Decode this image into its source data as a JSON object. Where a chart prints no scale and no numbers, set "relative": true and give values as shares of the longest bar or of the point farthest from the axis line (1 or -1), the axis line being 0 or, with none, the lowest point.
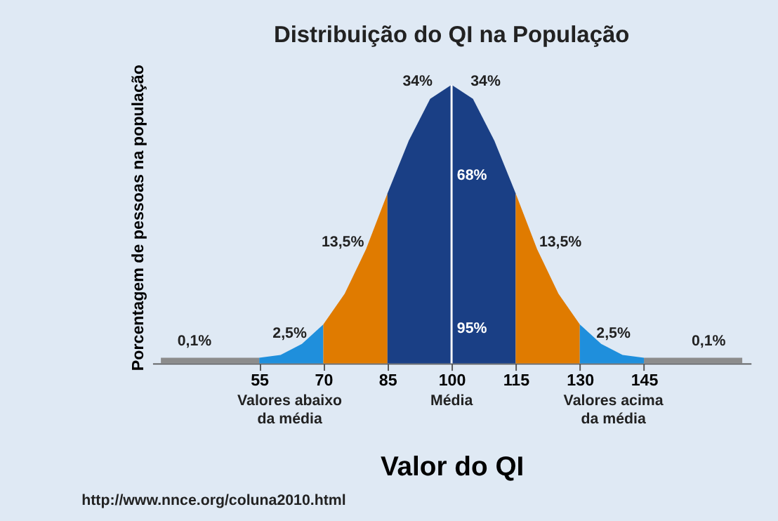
{
  "chart_data": {
    "type": "area",
    "title": "Distribuição do QI na População",
    "xlabel": "Valor do QI",
    "ylabel": "Porcentagem de pessoas na população",
    "relative": true,
    "xlim": [
      30,
      170
    ],
    "xticks": [
      55,
      70,
      85,
      100,
      115,
      130,
      145
    ],
    "grid": false,
    "series": [
      {
        "color": "#8c8c8c",
        "x": [
          32,
          55
        ],
        "values": [
          0.02,
          0.02
        ]
      },
      {
        "color": "#8c8c8c",
        "x": [
          145,
          168
        ],
        "values": [
          0.02,
          0.02
        ]
      },
      {
        "color": "#1f8fdc",
        "x": [
          55,
          60,
          65,
          70
        ],
        "values": [
          0.02,
          0.03,
          0.07,
          0.14
        ]
      },
      {
        "color": "#e07b00",
        "x": [
          70,
          75,
          80,
          85
        ],
        "values": [
          0.14,
          0.25,
          0.41,
          0.61
        ]
      },
      {
        "color": "#1a3f85",
        "x": [
          85,
          90,
          95,
          100,
          105,
          110,
          115
        ],
        "values": [
          0.61,
          0.8,
          0.95,
          1,
          0.95,
          0.8,
          0.61
        ]
      },
      {
        "color": "#e07b00",
        "x": [
          115,
          120,
          125,
          130
        ],
        "values": [
          0.61,
          0.41,
          0.25,
          0.14
        ]
      },
      {
        "color": "#1f8fdc",
        "x": [
          130,
          135,
          140,
          145
        ],
        "values": [
          0.14,
          0.07,
          0.03,
          0.02
        ]
      }
    ],
    "ref_lines": [
      {
        "axis": "x",
        "value": 100,
        "color": "#ffffff"
      }
    ],
    "annotations": [
      {
        "text": "68%",
        "x": 100,
        "y": 0.65
      },
      {
        "text": "95%",
        "x": 100,
        "y": 0.1
      },
      "0,1%",
      "2,5%",
      "13,5%",
      "34%",
      "34%",
      "13,5%",
      "2,5%",
      "0,1%",
      "Valores abaixo\nda média",
      "Média",
      "Valores acima\nda média",
      "http://www.nnce.org/coluna2010.html"
    ]
  }
}
